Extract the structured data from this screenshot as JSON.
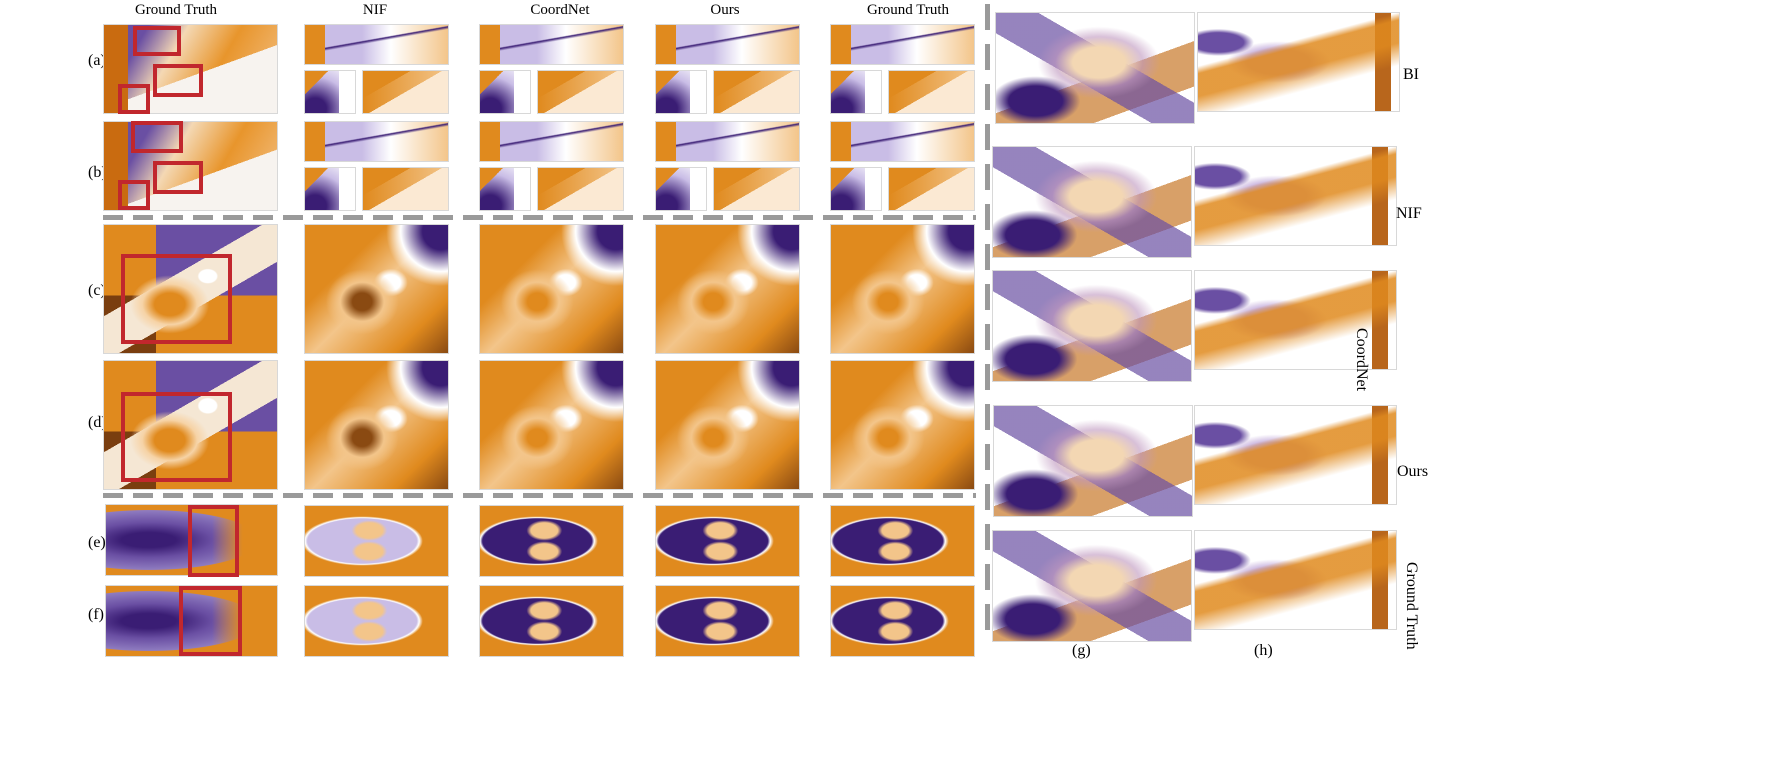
{
  "columns": [
    "Ground Truth",
    "NIF",
    "CoordNet",
    "Ours",
    "Ground Truth"
  ],
  "rows": [
    "(a)",
    "(b)",
    "(c)",
    "(d)",
    "(e)",
    "(f)"
  ],
  "volume_methods": [
    "BI",
    "NIF",
    "CoordNet",
    "Ours",
    "Ground Truth"
  ],
  "bottom_labels": [
    "(g)",
    "(h)"
  ],
  "colors": {
    "orange": "#e08a1e",
    "dark_orange": "#8a4a12",
    "light_orange": "#f3c58a",
    "purple": "#6a4fa3",
    "dark_purple": "#3a1d74",
    "light_purple": "#c9bde6",
    "highlight_box": "#c1272d",
    "separator": "#9a9a9a"
  }
}
